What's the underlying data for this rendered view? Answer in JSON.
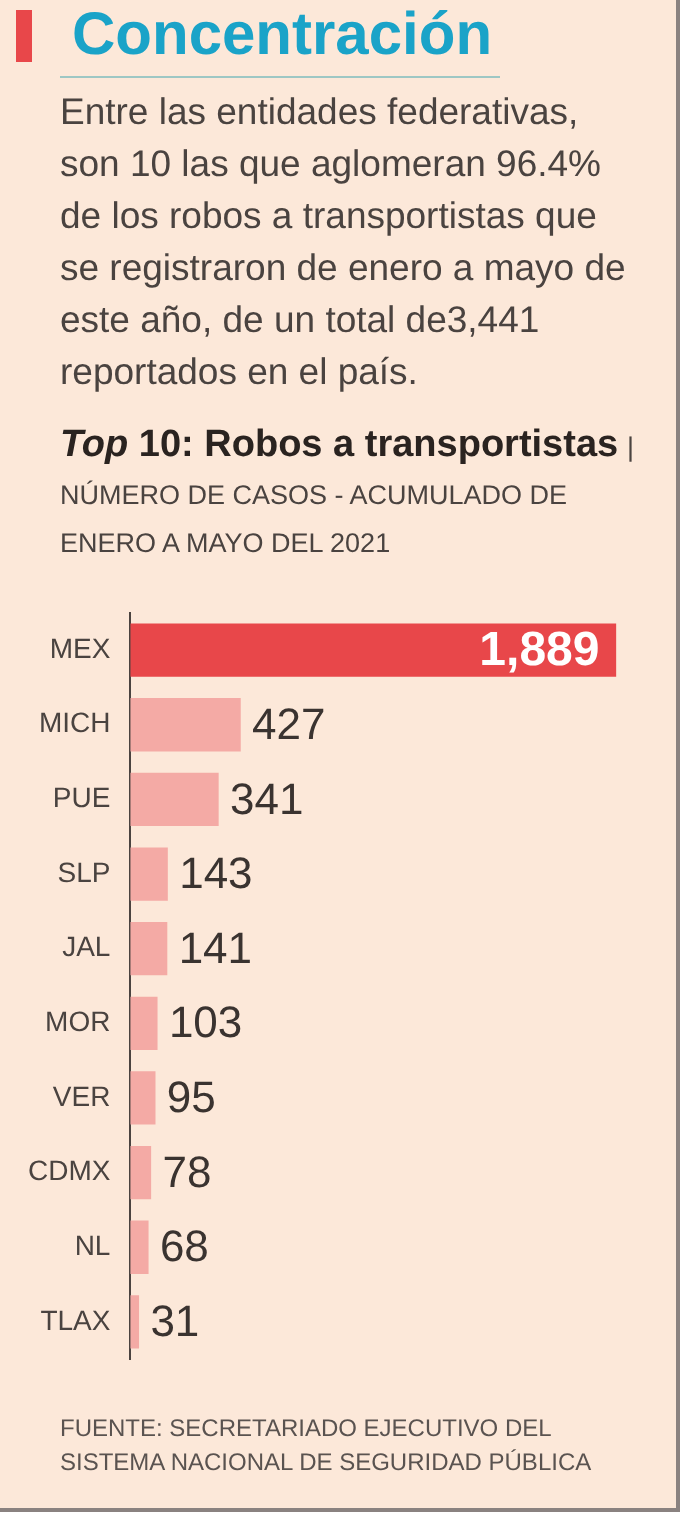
{
  "chart_data": {
    "type": "bar",
    "orientation": "horizontal",
    "title": "Concentración",
    "subtitle": "Entre las entidades federativas, son 10 las que aglomeran 96.4% de los robos a transportistas que se registraron de enero a mayo de este año, de un total de3,441 reportados en el país.",
    "annotations": [
      "Top 10: Robos a transportistas",
      "| NÚMERO DE CASOS - ACUMULADO DE ENERO A MAYO DEL 2021",
      "FUENTE: SECRETARIADO EJECUTIVO DEL SISTEMA NACIONAL DE SEGURIDAD PÚBLICA"
    ],
    "categories": [
      "MEX",
      "MICH",
      "PUE",
      "SLP",
      "JAL",
      "MOR",
      "VER",
      "CDMX",
      "NL",
      "TLAX"
    ],
    "values": [
      1889,
      427,
      341,
      143,
      141,
      103,
      95,
      78,
      68,
      31
    ],
    "colors": [
      "#e8474a",
      "#f4aaa5",
      "#f4aaa5",
      "#f4aaa5",
      "#f4aaa5",
      "#f4aaa5",
      "#f4aaa5",
      "#f4aaa5",
      "#f4aaa5",
      "#f4aaa5"
    ],
    "value_labels": [
      "1,889",
      "427",
      "341",
      "143",
      "141",
      "103",
      "95",
      "78",
      "68",
      "31"
    ],
    "grid": false,
    "legend": false
  }
}
